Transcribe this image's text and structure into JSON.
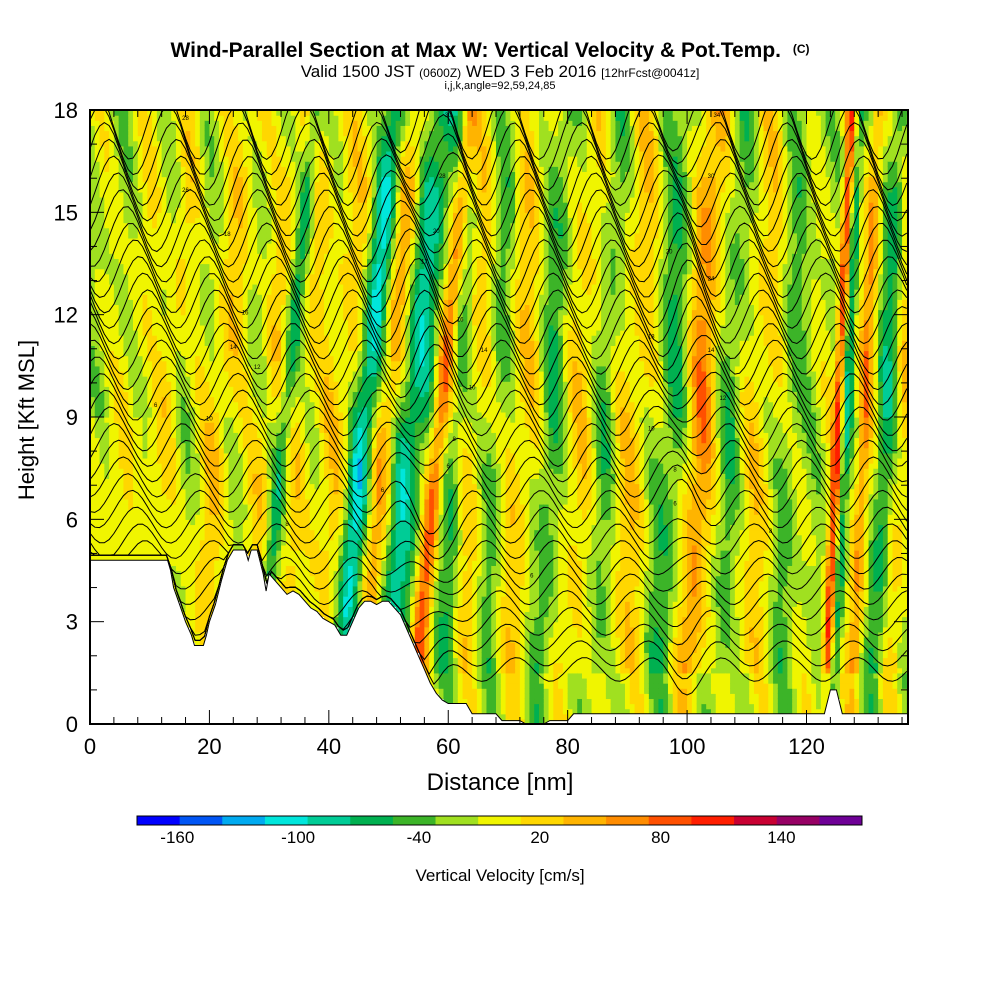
{
  "chart_data": {
    "type": "heatmap",
    "title": "Wind-Parallel Section at Max W: Vertical Velocity & Pot.Temp.",
    "title_mark": "(C)",
    "subtitle_parts": [
      "Valid 1500 JST",
      "(0600Z)",
      "WED 3 Feb 2016",
      "[12hrFcst@0041z]"
    ],
    "subtitle2": "i,j,k,angle=92,59,24,85",
    "xlabel": "Distance [nm]",
    "ylabel": "Height [Kft MSL]",
    "xlim": [
      0,
      137
    ],
    "ylim": [
      0,
      18
    ],
    "x_ticks": [
      0,
      20,
      40,
      60,
      80,
      100,
      120
    ],
    "y_ticks": [
      0,
      3,
      6,
      9,
      12,
      15,
      18
    ],
    "colorbar": {
      "label": "Vertical Velocity [cm/s]",
      "range": [
        -180,
        180
      ],
      "tick_labels": [
        -160,
        -100,
        -40,
        20,
        80,
        140
      ],
      "colors": [
        "#0000ff",
        "#0055f5",
        "#00aaf0",
        "#00e6dc",
        "#00cc96",
        "#00b050",
        "#3cb428",
        "#a0e020",
        "#f0f500",
        "#ffd700",
        "#ffb400",
        "#ff8c00",
        "#ff5000",
        "#ff1e00",
        "#c80032",
        "#960064",
        "#6e0096"
      ]
    },
    "terrain": [
      [
        0,
        4.8
      ],
      [
        13,
        4.8
      ],
      [
        13.5,
        4.5
      ],
      [
        14,
        4.0
      ],
      [
        15,
        3.5
      ],
      [
        16,
        3.0
      ],
      [
        17,
        2.6
      ],
      [
        17.5,
        2.3
      ],
      [
        19,
        2.3
      ],
      [
        19.5,
        2.6
      ],
      [
        20,
        3.0
      ],
      [
        21,
        3.5
      ],
      [
        22,
        4.2
      ],
      [
        23,
        4.8
      ],
      [
        24,
        5.1
      ],
      [
        26,
        5.1
      ],
      [
        26.5,
        4.8
      ],
      [
        27,
        5.1
      ],
      [
        28,
        5.1
      ],
      [
        29,
        4.4
      ],
      [
        29.5,
        3.9
      ],
      [
        30,
        4.4
      ],
      [
        31,
        4.2
      ],
      [
        32,
        4.0
      ],
      [
        33,
        3.8
      ],
      [
        34,
        3.9
      ],
      [
        35,
        3.8
      ],
      [
        36,
        3.6
      ],
      [
        37,
        3.4
      ],
      [
        38,
        3.3
      ],
      [
        39,
        3.1
      ],
      [
        40,
        3.0
      ],
      [
        41,
        2.9
      ],
      [
        42,
        2.6
      ],
      [
        43,
        2.6
      ],
      [
        44,
        3.0
      ],
      [
        45,
        3.4
      ],
      [
        46,
        3.6
      ],
      [
        47,
        3.6
      ],
      [
        48,
        3.5
      ],
      [
        49,
        3.6
      ],
      [
        50,
        3.6
      ],
      [
        51,
        3.4
      ],
      [
        52,
        3.2
      ],
      [
        53,
        2.8
      ],
      [
        54,
        2.4
      ],
      [
        55,
        2.0
      ],
      [
        56,
        1.6
      ],
      [
        57,
        1.2
      ],
      [
        58,
        0.9
      ],
      [
        59,
        0.7
      ],
      [
        60,
        0.6
      ],
      [
        63,
        0.6
      ],
      [
        64,
        0.3
      ],
      [
        68,
        0.3
      ],
      [
        69,
        0.1
      ],
      [
        72,
        0.1
      ],
      [
        73,
        0.0
      ],
      [
        76,
        0.0
      ],
      [
        77,
        0.1
      ],
      [
        80,
        0.1
      ],
      [
        81,
        0.3
      ],
      [
        123,
        0.3
      ],
      [
        124,
        1.0
      ],
      [
        125,
        1.0
      ],
      [
        126,
        0.3
      ],
      [
        137,
        0.3
      ]
    ],
    "plumes": [
      {
        "x": 4,
        "w": 2.5,
        "amp": 15
      },
      {
        "x": 10,
        "w": 2.0,
        "amp": 25
      },
      {
        "x": 19,
        "w": 2.5,
        "amp": 35
      },
      {
        "x": 27,
        "w": 2.0,
        "amp": 30
      },
      {
        "x": 30,
        "w": 1.2,
        "amp": -50
      },
      {
        "x": 33,
        "w": 2.0,
        "amp": 25
      },
      {
        "x": 37,
        "w": 2.0,
        "amp": 20
      },
      {
        "x": 40,
        "w": 2.0,
        "amp": 30
      },
      {
        "x": 43.5,
        "w": 2.2,
        "amp": -95
      },
      {
        "x": 47,
        "w": 2.5,
        "amp": 70
      },
      {
        "x": 51,
        "w": 3.0,
        "amp": -75
      },
      {
        "x": 56,
        "w": 1.5,
        "amp": 95
      },
      {
        "x": 60,
        "w": 2.0,
        "amp": -40
      },
      {
        "x": 63,
        "w": 2.5,
        "amp": 30
      },
      {
        "x": 67,
        "w": 2.0,
        "amp": -30
      },
      {
        "x": 71,
        "w": 3.0,
        "amp": 35
      },
      {
        "x": 76,
        "w": 2.0,
        "amp": -40
      },
      {
        "x": 81,
        "w": 3.0,
        "amp": 30
      },
      {
        "x": 85,
        "w": 2.0,
        "amp": -30
      },
      {
        "x": 90,
        "w": 3.0,
        "amp": 35
      },
      {
        "x": 96,
        "w": 2.5,
        "amp": -40
      },
      {
        "x": 101,
        "w": 2.5,
        "amp": 70
      },
      {
        "x": 106,
        "w": 2.0,
        "amp": -30
      },
      {
        "x": 111,
        "w": 3.0,
        "amp": 30
      },
      {
        "x": 116,
        "w": 2.0,
        "amp": -25
      },
      {
        "x": 124,
        "w": 0.8,
        "amp": 110
      },
      {
        "x": 125.5,
        "w": 0.8,
        "amp": -60
      },
      {
        "x": 128.5,
        "w": 1.2,
        "amp": 70
      },
      {
        "x": 132,
        "w": 1.5,
        "amp": -50
      },
      {
        "x": 135,
        "w": 1.5,
        "amp": 30
      }
    ],
    "isentrope_levels": [
      2,
      3,
      4,
      5,
      6,
      7,
      8,
      9,
      10,
      11,
      12,
      13,
      14,
      15,
      16,
      17,
      18,
      19,
      20,
      21,
      22,
      23,
      24,
      25,
      26,
      27,
      28,
      29,
      30,
      31,
      32,
      33,
      34,
      35,
      36
    ],
    "contour_labels": [
      {
        "x": 11,
        "y": 9.3,
        "text": "6"
      },
      {
        "x": 16,
        "y": 17.7,
        "text": "28"
      },
      {
        "x": 16,
        "y": 15.6,
        "text": "26"
      },
      {
        "x": 23,
        "y": 14.3,
        "text": "18"
      },
      {
        "x": 26,
        "y": 12.0,
        "text": "16"
      },
      {
        "x": 24,
        "y": 11.0,
        "text": "14"
      },
      {
        "x": 28,
        "y": 10.4,
        "text": "12"
      },
      {
        "x": 20,
        "y": 8.9,
        "text": "10"
      },
      {
        "x": 33,
        "y": 5.8,
        "text": "8"
      },
      {
        "x": 49,
        "y": 6.8,
        "text": "6"
      },
      {
        "x": 60,
        "y": 7.5,
        "text": "6"
      },
      {
        "x": 61,
        "y": 8.3,
        "text": "8"
      },
      {
        "x": 64,
        "y": 9.8,
        "text": "10"
      },
      {
        "x": 66,
        "y": 10.9,
        "text": "14"
      },
      {
        "x": 62,
        "y": 11.8,
        "text": "16"
      },
      {
        "x": 56,
        "y": 13.5,
        "text": "17"
      },
      {
        "x": 58,
        "y": 14.4,
        "text": "20"
      },
      {
        "x": 59,
        "y": 16.0,
        "text": "28"
      },
      {
        "x": 60,
        "y": 17.8,
        "text": "30"
      },
      {
        "x": 105,
        "y": 17.8,
        "text": "34"
      },
      {
        "x": 104,
        "y": 16.0,
        "text": "30"
      },
      {
        "x": 97,
        "y": 13.8,
        "text": "20"
      },
      {
        "x": 104,
        "y": 13.0,
        "text": "24"
      },
      {
        "x": 94,
        "y": 11.3,
        "text": "18"
      },
      {
        "x": 104,
        "y": 10.9,
        "text": "14"
      },
      {
        "x": 106,
        "y": 9.5,
        "text": "12"
      },
      {
        "x": 94,
        "y": 8.6,
        "text": "10"
      },
      {
        "x": 98,
        "y": 7.4,
        "text": "8"
      },
      {
        "x": 98,
        "y": 6.4,
        "text": "6"
      },
      {
        "x": 114,
        "y": 5.6,
        "text": "8"
      },
      {
        "x": 74,
        "y": 4.3,
        "text": "6"
      }
    ]
  }
}
